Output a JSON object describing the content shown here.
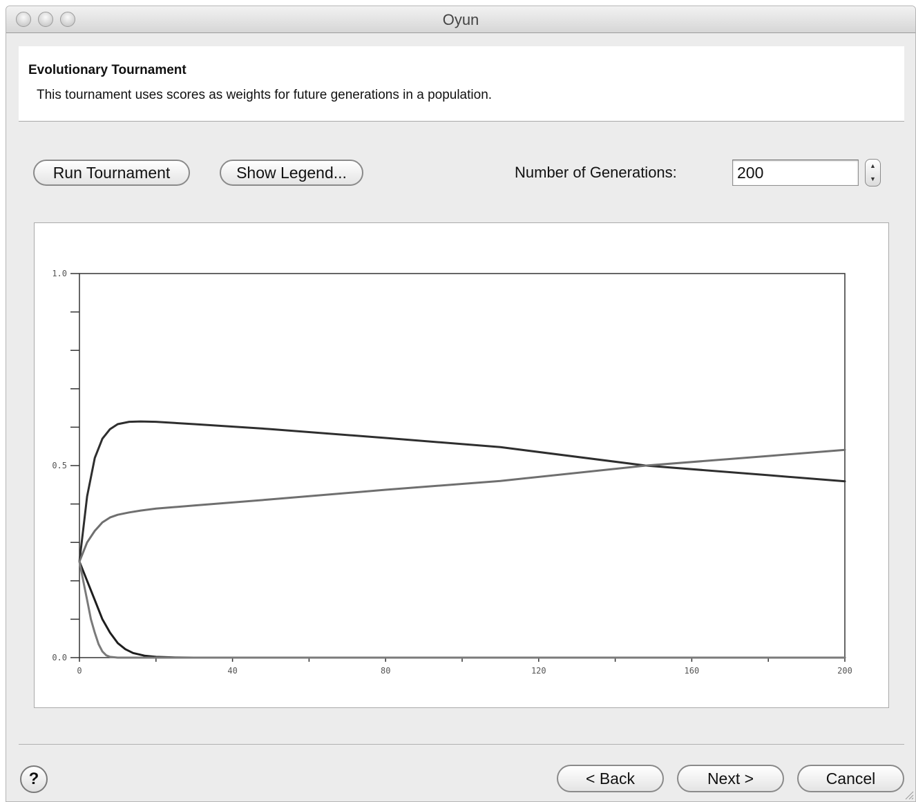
{
  "window": {
    "title": "Oyun"
  },
  "header": {
    "title": "Evolutionary Tournament",
    "description": "This tournament uses scores as weights for future generations in a population."
  },
  "toolbar": {
    "run_label": "Run Tournament",
    "legend_label": "Show Legend...",
    "generations_label": "Number of Generations:",
    "generations_value": "200"
  },
  "footer": {
    "help_label": "?",
    "back_label": "< Back",
    "next_label": "Next >",
    "cancel_label": "Cancel"
  },
  "chart_data": {
    "type": "line",
    "title": "",
    "xlabel": "",
    "ylabel": "",
    "xlim": [
      0,
      200
    ],
    "ylim": [
      0.0,
      1.0
    ],
    "x_ticks": [
      0,
      40,
      80,
      120,
      160,
      200
    ],
    "x_tick_labels": [
      "0",
      "40",
      "80",
      "120",
      "160",
      "200"
    ],
    "y_labeled_ticks": [
      0.0,
      0.5,
      1.0
    ],
    "y_tick_labels": [
      "0.0",
      "0.5",
      "1.0"
    ],
    "y_minor_ticks": [
      0.1,
      0.2,
      0.3,
      0.4,
      0.6,
      0.7,
      0.8,
      0.9
    ],
    "x_minor_ticks": [
      20,
      60,
      100,
      140,
      180
    ],
    "grid": false,
    "legend": "none",
    "series": [
      {
        "color": "#2e2e2e",
        "x": [
          0,
          2,
          4,
          6,
          8,
          10,
          13,
          16,
          20,
          30,
          50,
          80,
          110,
          148,
          180,
          200
        ],
        "values": [
          0.25,
          0.42,
          0.52,
          0.57,
          0.595,
          0.608,
          0.614,
          0.615,
          0.614,
          0.608,
          0.595,
          0.572,
          0.548,
          0.5,
          0.475,
          0.459
        ]
      },
      {
        "color": "#6f6f6f",
        "x": [
          0,
          2,
          4,
          6,
          8,
          10,
          13,
          16,
          20,
          30,
          50,
          80,
          110,
          148,
          180,
          200
        ],
        "values": [
          0.25,
          0.3,
          0.33,
          0.352,
          0.365,
          0.372,
          0.378,
          0.383,
          0.388,
          0.396,
          0.412,
          0.437,
          0.46,
          0.5,
          0.525,
          0.541
        ]
      },
      {
        "color": "#1e1e1e",
        "x": [
          0,
          2,
          4,
          6,
          8,
          10,
          12,
          14,
          17,
          20,
          25,
          30,
          200
        ],
        "values": [
          0.25,
          0.2,
          0.15,
          0.1,
          0.065,
          0.038,
          0.022,
          0.012,
          0.005,
          0.002,
          0.0005,
          0.0,
          0.0
        ]
      },
      {
        "color": "#7a7a7a",
        "x": [
          0,
          1,
          2,
          3,
          4,
          5,
          6,
          7,
          8,
          10,
          200
        ],
        "values": [
          0.25,
          0.2,
          0.15,
          0.1,
          0.065,
          0.035,
          0.016,
          0.006,
          0.002,
          0.0,
          0.0
        ]
      }
    ]
  }
}
